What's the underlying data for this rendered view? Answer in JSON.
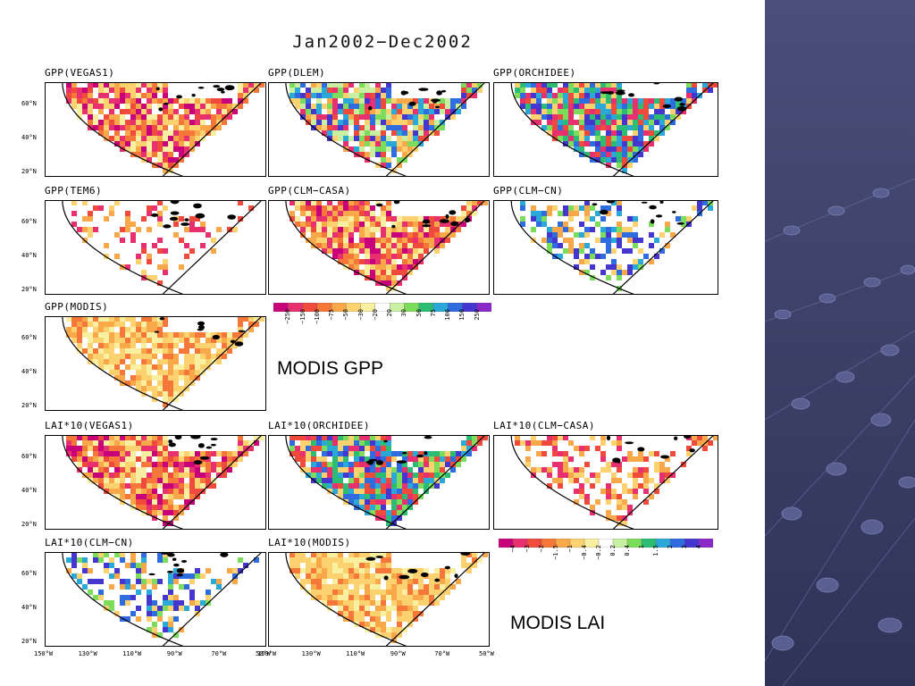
{
  "title": "Jan2002−Dec2002",
  "gpp_panels": [
    {
      "label": "GPP(VEGAS1)",
      "palette": "warm"
    },
    {
      "label": "GPP(DLEM)",
      "palette": "mixed"
    },
    {
      "label": "GPP(ORCHIDEE)",
      "palette": "cool"
    },
    {
      "label": "GPP(TEM6)",
      "palette": "sparse"
    },
    {
      "label": "GPP(CLM−CASA)",
      "palette": "warm"
    },
    {
      "label": "GPP(CLM−CN)",
      "palette": "coolsparse"
    },
    {
      "label": "GPP(MODIS)",
      "palette": "warmlight"
    }
  ],
  "lai_panels": [
    {
      "label": "LAI*10(VEGAS1)",
      "palette": "warm"
    },
    {
      "label": "LAI*10(ORCHIDEE)",
      "palette": "cool"
    },
    {
      "label": "LAI*10(CLM−CASA)",
      "palette": "warmsparse"
    },
    {
      "label": "LAI*10(CLM−CN)",
      "palette": "coolsparse"
    },
    {
      "label": "LAI*10(MODIS)",
      "palette": "warmlight"
    }
  ],
  "lat_labels": [
    "60°N",
    "40°N",
    "20°N"
  ],
  "lon_labels": [
    "150°W",
    "130°W",
    "110°W",
    "90°W",
    "70°W",
    "50°W"
  ],
  "gpp_colorbar": {
    "ticks": [
      "−250",
      "−150",
      "−100",
      "−75",
      "−50",
      "−30",
      "−20",
      "20",
      "30",
      "50",
      "75",
      "100",
      "150",
      "250"
    ],
    "colors": [
      "#c8007a",
      "#e83070",
      "#f04a3c",
      "#f5783a",
      "#f8a848",
      "#fcd270",
      "#f8f0a0",
      "#ffffff",
      "#c8f0a0",
      "#7cdc5c",
      "#2cbc74",
      "#2aa8d8",
      "#2e6ce0",
      "#4636d0",
      "#8a28c8"
    ]
  },
  "lai_colorbar": {
    "ticks": [
      "−4",
      "−3",
      "−2",
      "−1.5",
      "−1",
      "−0.4",
      "−0.2",
      "0.2",
      "0.4",
      "1",
      "1.5",
      "2",
      "3",
      "4"
    ],
    "colors": [
      "#c8007a",
      "#e83070",
      "#f04a3c",
      "#f5783a",
      "#f8a848",
      "#fcd270",
      "#f8f0a0",
      "#ffffff",
      "#c8f0a0",
      "#7cdc5c",
      "#2cbc74",
      "#2aa8d8",
      "#2e6ce0",
      "#4636d0",
      "#8a28c8"
    ]
  },
  "annotations": {
    "modis_gpp": "MODIS GPP",
    "modis_lai": "MODIS LAI"
  },
  "colors": {
    "sidebar": "#3b3f66",
    "bead": "#6a6f9a"
  }
}
